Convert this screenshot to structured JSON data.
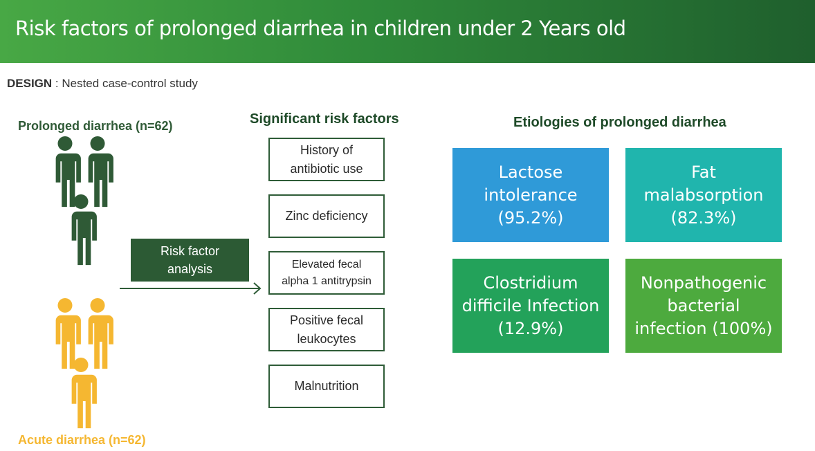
{
  "title": "Risk factors of prolonged diarrhea in children under 2 Years old",
  "design": {
    "label": "DESIGN",
    "text": " : Nested case-control study"
  },
  "groups": {
    "prolonged": {
      "label": "Prolonged diarrhea (n=62)",
      "color": "#2f5a36"
    },
    "acute": {
      "label": "Acute diarrhea (n=62)",
      "color": "#f5b731"
    }
  },
  "analysis": {
    "label": "Risk factor\nanalysis"
  },
  "risk_factors": {
    "title": "Significant risk factors",
    "items": [
      "History of\nantibiotic use",
      "Zinc deficiency",
      "Elevated fecal\nalpha 1 antitrypsin",
      "Positive fecal\nleukocytes",
      "Malnutrition"
    ]
  },
  "etiologies": {
    "title": "Etiologies of prolonged diarrhea",
    "items": [
      {
        "text": "Lactose\nintolerance\n(95.2%)",
        "color": "#2f9ad8"
      },
      {
        "text": "Fat\nmalabsorption\n(82.3%)",
        "color": "#20b5ad"
      },
      {
        "text": "Clostridium\ndifficile Infection\n(12.9%)",
        "color": "#23a25a"
      },
      {
        "text": "Nonpathogenic\nbacterial\ninfection (100%)",
        "color": "#4daa3e"
      }
    ]
  }
}
